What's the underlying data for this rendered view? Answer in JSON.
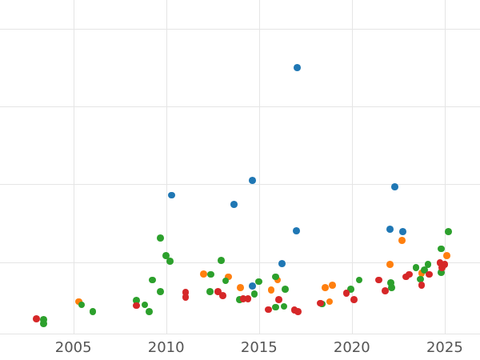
{
  "chart_data": {
    "type": "scatter",
    "title": "",
    "xlabel": "",
    "ylabel": "",
    "legend_position": "none",
    "grid": true,
    "background_color": "#ffffff",
    "gridline_color": "#e5e5e5",
    "tick_label_color": "#545454",
    "point_radius_px": 4.4,
    "x_ticks": [
      2005,
      2010,
      2015,
      2020,
      2025
    ],
    "x_tick_labels": [
      "2005",
      "2010",
      "2015",
      "2020",
      "2025"
    ],
    "x_range": [
      2001.05,
      2026.9
    ],
    "y_range": [
      0.08,
      4.37
    ],
    "y_gridlines": [
      1,
      2,
      3,
      4
    ],
    "y_tick_labels_visible": false,
    "series": [
      {
        "name": "blue",
        "color": "#1f77b4",
        "points": [
          [
            2010.3,
            1.86
          ],
          [
            2013.65,
            1.74
          ],
          [
            2014.65,
            2.05
          ],
          [
            2014.65,
            0.69
          ],
          [
            2016.25,
            0.98
          ],
          [
            2017.0,
            1.4
          ],
          [
            2017.05,
            3.5
          ],
          [
            2022.05,
            1.42
          ],
          [
            2022.3,
            1.97
          ],
          [
            2022.75,
            1.39
          ]
        ]
      },
      {
        "name": "orange",
        "color": "#ff7f0e",
        "points": [
          [
            2005.3,
            0.49
          ],
          [
            2012.0,
            0.85
          ],
          [
            2013.35,
            0.81
          ],
          [
            2014.0,
            0.67
          ],
          [
            2015.65,
            0.64
          ],
          [
            2016.0,
            0.77
          ],
          [
            2018.55,
            0.67
          ],
          [
            2018.8,
            0.49
          ],
          [
            2018.95,
            0.7
          ],
          [
            2022.05,
            0.97
          ],
          [
            2022.7,
            1.28
          ],
          [
            2023.75,
            0.86
          ],
          [
            2025.1,
            1.08
          ]
        ]
      },
      {
        "name": "green",
        "color": "#2ca02c",
        "points": [
          [
            2003.4,
            0.26
          ],
          [
            2003.4,
            0.21
          ],
          [
            2005.45,
            0.45
          ],
          [
            2006.05,
            0.36
          ],
          [
            2008.4,
            0.51
          ],
          [
            2008.85,
            0.45
          ],
          [
            2009.1,
            0.36
          ],
          [
            2009.25,
            0.77
          ],
          [
            2009.7,
            1.31
          ],
          [
            2009.7,
            0.62
          ],
          [
            2010.0,
            1.08
          ],
          [
            2010.2,
            1.01
          ],
          [
            2012.35,
            0.62
          ],
          [
            2012.4,
            0.84
          ],
          [
            2012.95,
            1.02
          ],
          [
            2013.2,
            0.76
          ],
          [
            2013.95,
            0.52
          ],
          [
            2014.75,
            0.59
          ],
          [
            2015.0,
            0.75
          ],
          [
            2015.9,
            0.81
          ],
          [
            2015.9,
            0.42
          ],
          [
            2016.35,
            0.43
          ],
          [
            2016.4,
            0.65
          ],
          [
            2018.4,
            0.46
          ],
          [
            2019.95,
            0.65
          ],
          [
            2020.4,
            0.77
          ],
          [
            2022.1,
            0.73
          ],
          [
            2022.15,
            0.67
          ],
          [
            2023.45,
            0.93
          ],
          [
            2023.7,
            0.78
          ],
          [
            2023.9,
            0.9
          ],
          [
            2024.1,
            0.97
          ],
          [
            2024.8,
            0.87
          ],
          [
            2024.8,
            1.17
          ],
          [
            2025.2,
            1.39
          ]
        ]
      },
      {
        "name": "red",
        "color": "#d62728",
        "points": [
          [
            2003.0,
            0.27
          ],
          [
            2008.4,
            0.44
          ],
          [
            2011.05,
            0.61
          ],
          [
            2011.05,
            0.55
          ],
          [
            2012.8,
            0.62
          ],
          [
            2013.05,
            0.57
          ],
          [
            2014.15,
            0.53
          ],
          [
            2014.4,
            0.53
          ],
          [
            2015.5,
            0.39
          ],
          [
            2016.05,
            0.52
          ],
          [
            2016.9,
            0.38
          ],
          [
            2017.1,
            0.36
          ],
          [
            2018.3,
            0.47
          ],
          [
            2019.7,
            0.6
          ],
          [
            2020.1,
            0.52
          ],
          [
            2021.45,
            0.77
          ],
          [
            2021.8,
            0.63
          ],
          [
            2022.9,
            0.81
          ],
          [
            2023.1,
            0.84
          ],
          [
            2023.75,
            0.7
          ],
          [
            2024.15,
            0.84
          ],
          [
            2024.75,
            0.99
          ],
          [
            2024.85,
            0.93
          ],
          [
            2025.0,
            0.97
          ]
        ]
      }
    ]
  }
}
